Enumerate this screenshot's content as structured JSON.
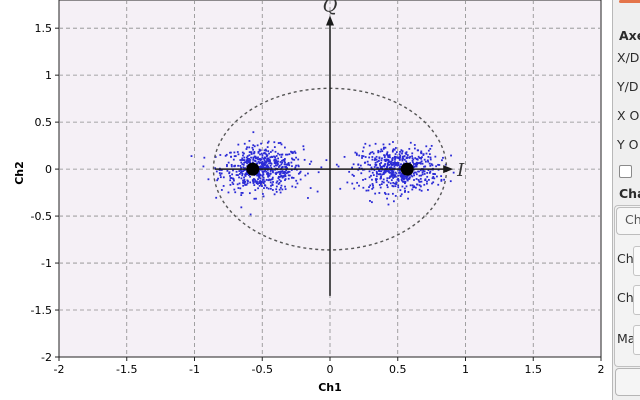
{
  "chart_data": {
    "type": "scatter",
    "title": "",
    "xlabel": "Ch1",
    "ylabel": "Ch2",
    "xlim": [
      -2,
      2
    ],
    "ylim": [
      -2,
      1.8
    ],
    "x_ticks": [
      -2,
      -1.5,
      -1,
      -0.5,
      0,
      0.5,
      1,
      1.5,
      2
    ],
    "x_tick_labels": [
      "-2",
      "-1.5",
      "-1",
      "-0.5",
      "0",
      "0.5",
      "1",
      "1.5",
      "2"
    ],
    "y_ticks": [
      -2,
      -1.5,
      -1,
      -0.5,
      0,
      0.5,
      1,
      1.5
    ],
    "y_tick_labels": [
      "-2",
      "-1.5",
      "-1",
      "-0.5",
      "0",
      "0.5",
      "1",
      "1.5"
    ],
    "grid": true,
    "background": "#f5f0f6",
    "series": [
      {
        "values": [
          {
            "x": -0.57,
            "y": 0.0
          },
          {
            "x": 0.57,
            "y": 0.0
          }
        ],
        "color": "#000000"
      },
      {
        "clusters": [
          {
            "center_x": -0.5,
            "center_y": 0.0,
            "spread_x": 0.15,
            "spread_y": 0.12,
            "count": 600
          },
          {
            "center_x": 0.5,
            "center_y": 0.0,
            "spread_x": 0.15,
            "spread_y": 0.12,
            "count": 600
          }
        ],
        "color": "#2a2ad6"
      }
    ],
    "overlay": {
      "i_axis_label": "I",
      "q_axis_label": "Q",
      "circle_radius": 0.86,
      "i_axis_range": [
        -0.85,
        0.85
      ],
      "q_axis_range": [
        -1.35,
        1.55
      ]
    }
  },
  "side_panel": {
    "section_axes": "Axe",
    "xd": "X/D",
    "yd": "Y/D",
    "xo": "X O",
    "yo": "Y O",
    "checkbox_text": "",
    "section_channel": "Cha",
    "tab_label": "Ch",
    "row1": "Cha",
    "row2": "Cha",
    "row3": "Mar"
  },
  "colors": {
    "accent": "#e4744a",
    "marker": "#1a1a1a",
    "scatter": "#2a2ad6",
    "plot_bg": "#f5f0f6",
    "grid": "#8c8c8c"
  }
}
